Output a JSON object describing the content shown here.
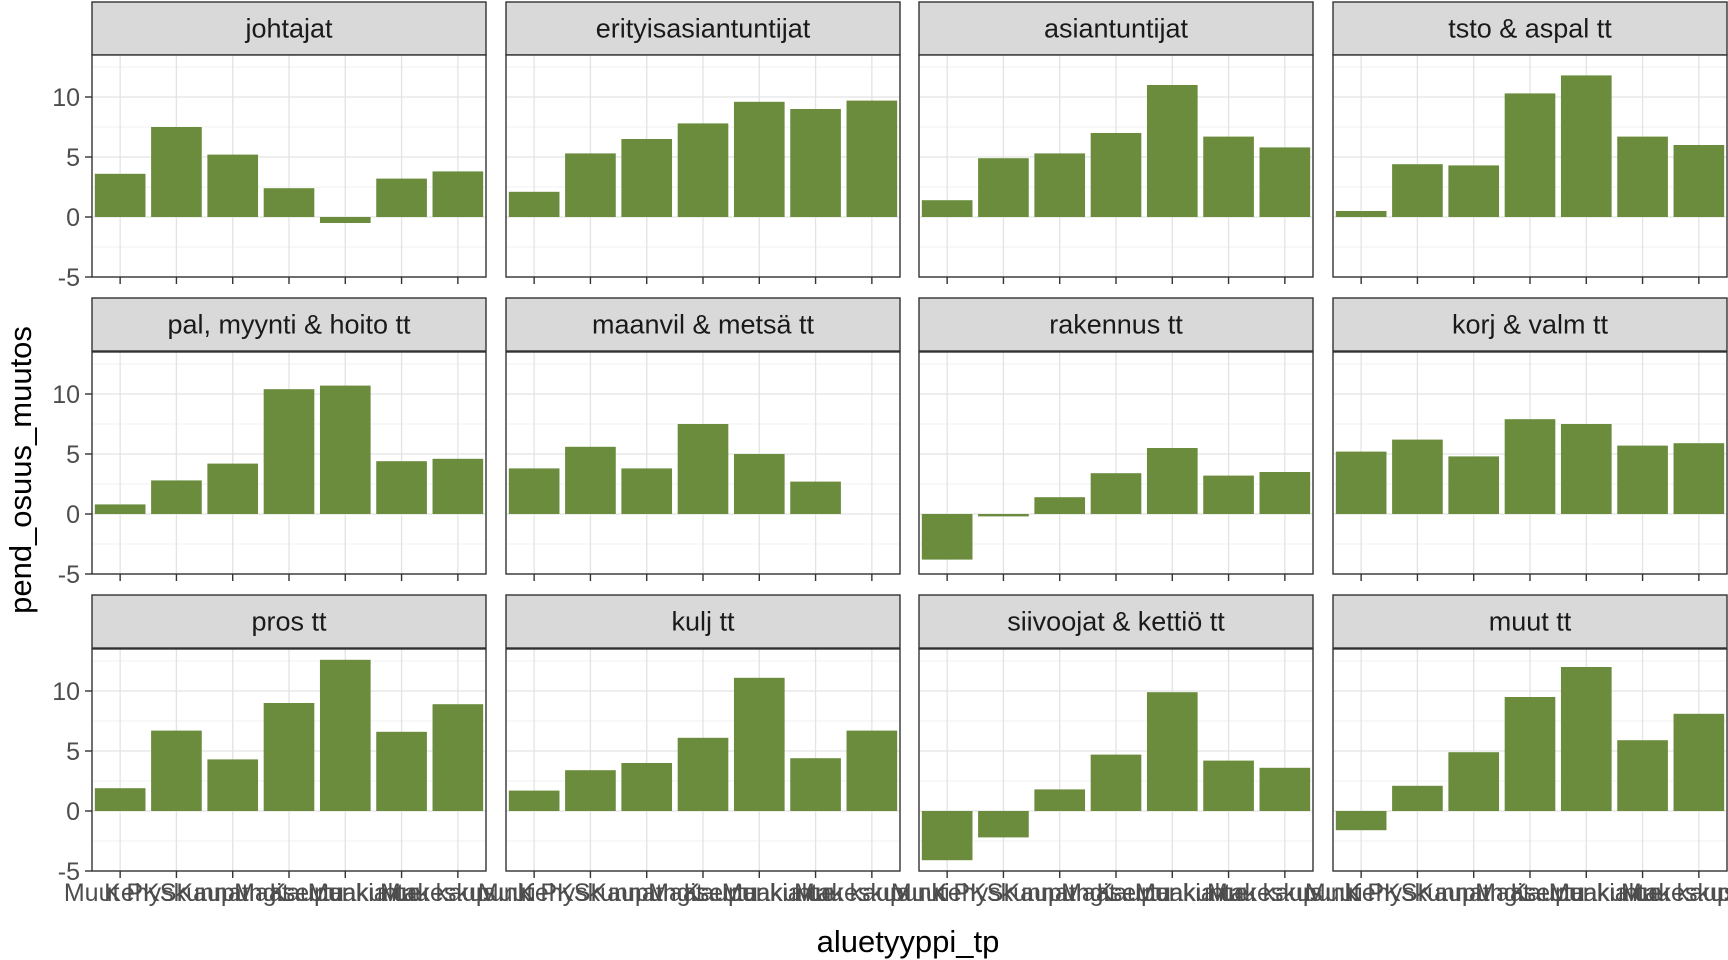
{
  "chart_data": {
    "type": "bar",
    "layout": "facet-grid",
    "xlabel": "aluetyyppi_tp",
    "ylabel": "pend_osuus_muutos",
    "ylim": [
      -5,
      13.5
    ],
    "yticks": [
      -5,
      0,
      5,
      10
    ],
    "grid": true,
    "bar_color": "#6b8c3c",
    "strip_fill": "#d9d9d9",
    "categories": [
      "Muut PKS",
      "Kehyskunnat",
      "Kaupungit",
      "Maaseutu",
      "Kaupunkialue",
      "Maakuntakeskus",
      "Muu kaupunki"
    ],
    "panels": [
      {
        "title": "johtajat",
        "values": [
          3.6,
          7.5,
          5.2,
          2.4,
          -0.5,
          3.2,
          3.8
        ]
      },
      {
        "title": "erityisasiantuntijat",
        "values": [
          2.1,
          5.3,
          6.5,
          7.8,
          9.6,
          9.0,
          9.7
        ]
      },
      {
        "title": "asiantuntijat",
        "values": [
          1.4,
          4.9,
          5.3,
          7.0,
          11.0,
          6.7,
          5.8
        ]
      },
      {
        "title": "tsto & aspal tt",
        "values": [
          0.5,
          4.4,
          4.3,
          10.3,
          11.8,
          6.7,
          6.0
        ]
      },
      {
        "title": "pal, myynti & hoito tt",
        "values": [
          0.8,
          2.8,
          4.2,
          10.4,
          10.7,
          4.4,
          4.6
        ]
      },
      {
        "title": "maanvil & metsä tt",
        "values": [
          3.8,
          5.6,
          3.8,
          7.5,
          5.0,
          2.7,
          null
        ]
      },
      {
        "title": "rakennus tt",
        "values": [
          -3.8,
          -0.2,
          1.4,
          3.4,
          5.5,
          3.2,
          3.5
        ]
      },
      {
        "title": "korj & valm tt",
        "values": [
          5.2,
          6.2,
          4.8,
          7.9,
          7.5,
          5.7,
          5.9
        ]
      },
      {
        "title": "pros tt",
        "values": [
          1.9,
          6.7,
          4.3,
          9.0,
          12.6,
          6.6,
          8.9
        ]
      },
      {
        "title": "kulj tt",
        "values": [
          1.7,
          3.4,
          4.0,
          6.1,
          11.1,
          4.4,
          6.7
        ]
      },
      {
        "title": "siivoojat & kettiö tt",
        "values": [
          -4.1,
          -2.2,
          1.8,
          4.7,
          9.9,
          4.2,
          3.6
        ]
      },
      {
        "title": "muut tt",
        "values": [
          -1.6,
          2.1,
          4.9,
          9.5,
          12.0,
          5.9,
          8.1
        ]
      }
    ]
  }
}
